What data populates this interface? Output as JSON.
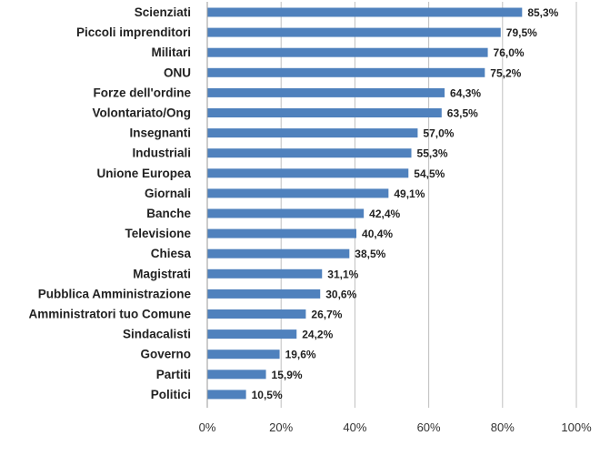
{
  "chart_data": {
    "type": "bar",
    "orientation": "horizontal",
    "categories": [
      "Scienziati",
      "Piccoli imprenditori",
      "Militari",
      "ONU",
      "Forze dell'ordine",
      "Volontariato/Ong",
      "Insegnanti",
      "Industriali",
      "Unione Europea",
      "Giornali",
      "Banche",
      "Televisione",
      "Chiesa",
      "Magistrati",
      "Pubblica Amministrazione",
      "Amministratori tuo Comune",
      "Sindacalisti",
      "Governo",
      "Partiti",
      "Politici"
    ],
    "values": [
      85.3,
      79.5,
      76.0,
      75.2,
      64.3,
      63.5,
      57.0,
      55.3,
      54.5,
      49.1,
      42.4,
      40.4,
      38.5,
      31.1,
      30.6,
      26.7,
      24.2,
      19.6,
      15.9,
      10.5
    ],
    "value_labels": [
      "85,3%",
      "79,5%",
      "76,0%",
      "75,2%",
      "64,3%",
      "63,5%",
      "57,0%",
      "55,3%",
      "54,5%",
      "49,1%",
      "42,4%",
      "40,4%",
      "38,5%",
      "31,1%",
      "30,6%",
      "26,7%",
      "24,2%",
      "19,6%",
      "15,9%",
      "10,5%"
    ],
    "x_ticks": [
      "0%",
      "20%",
      "40%",
      "60%",
      "80%",
      "100%"
    ],
    "xlim": [
      0,
      100
    ],
    "grid": true,
    "bar_color": "#4f81bd",
    "grid_color": "#bfbfbf"
  }
}
